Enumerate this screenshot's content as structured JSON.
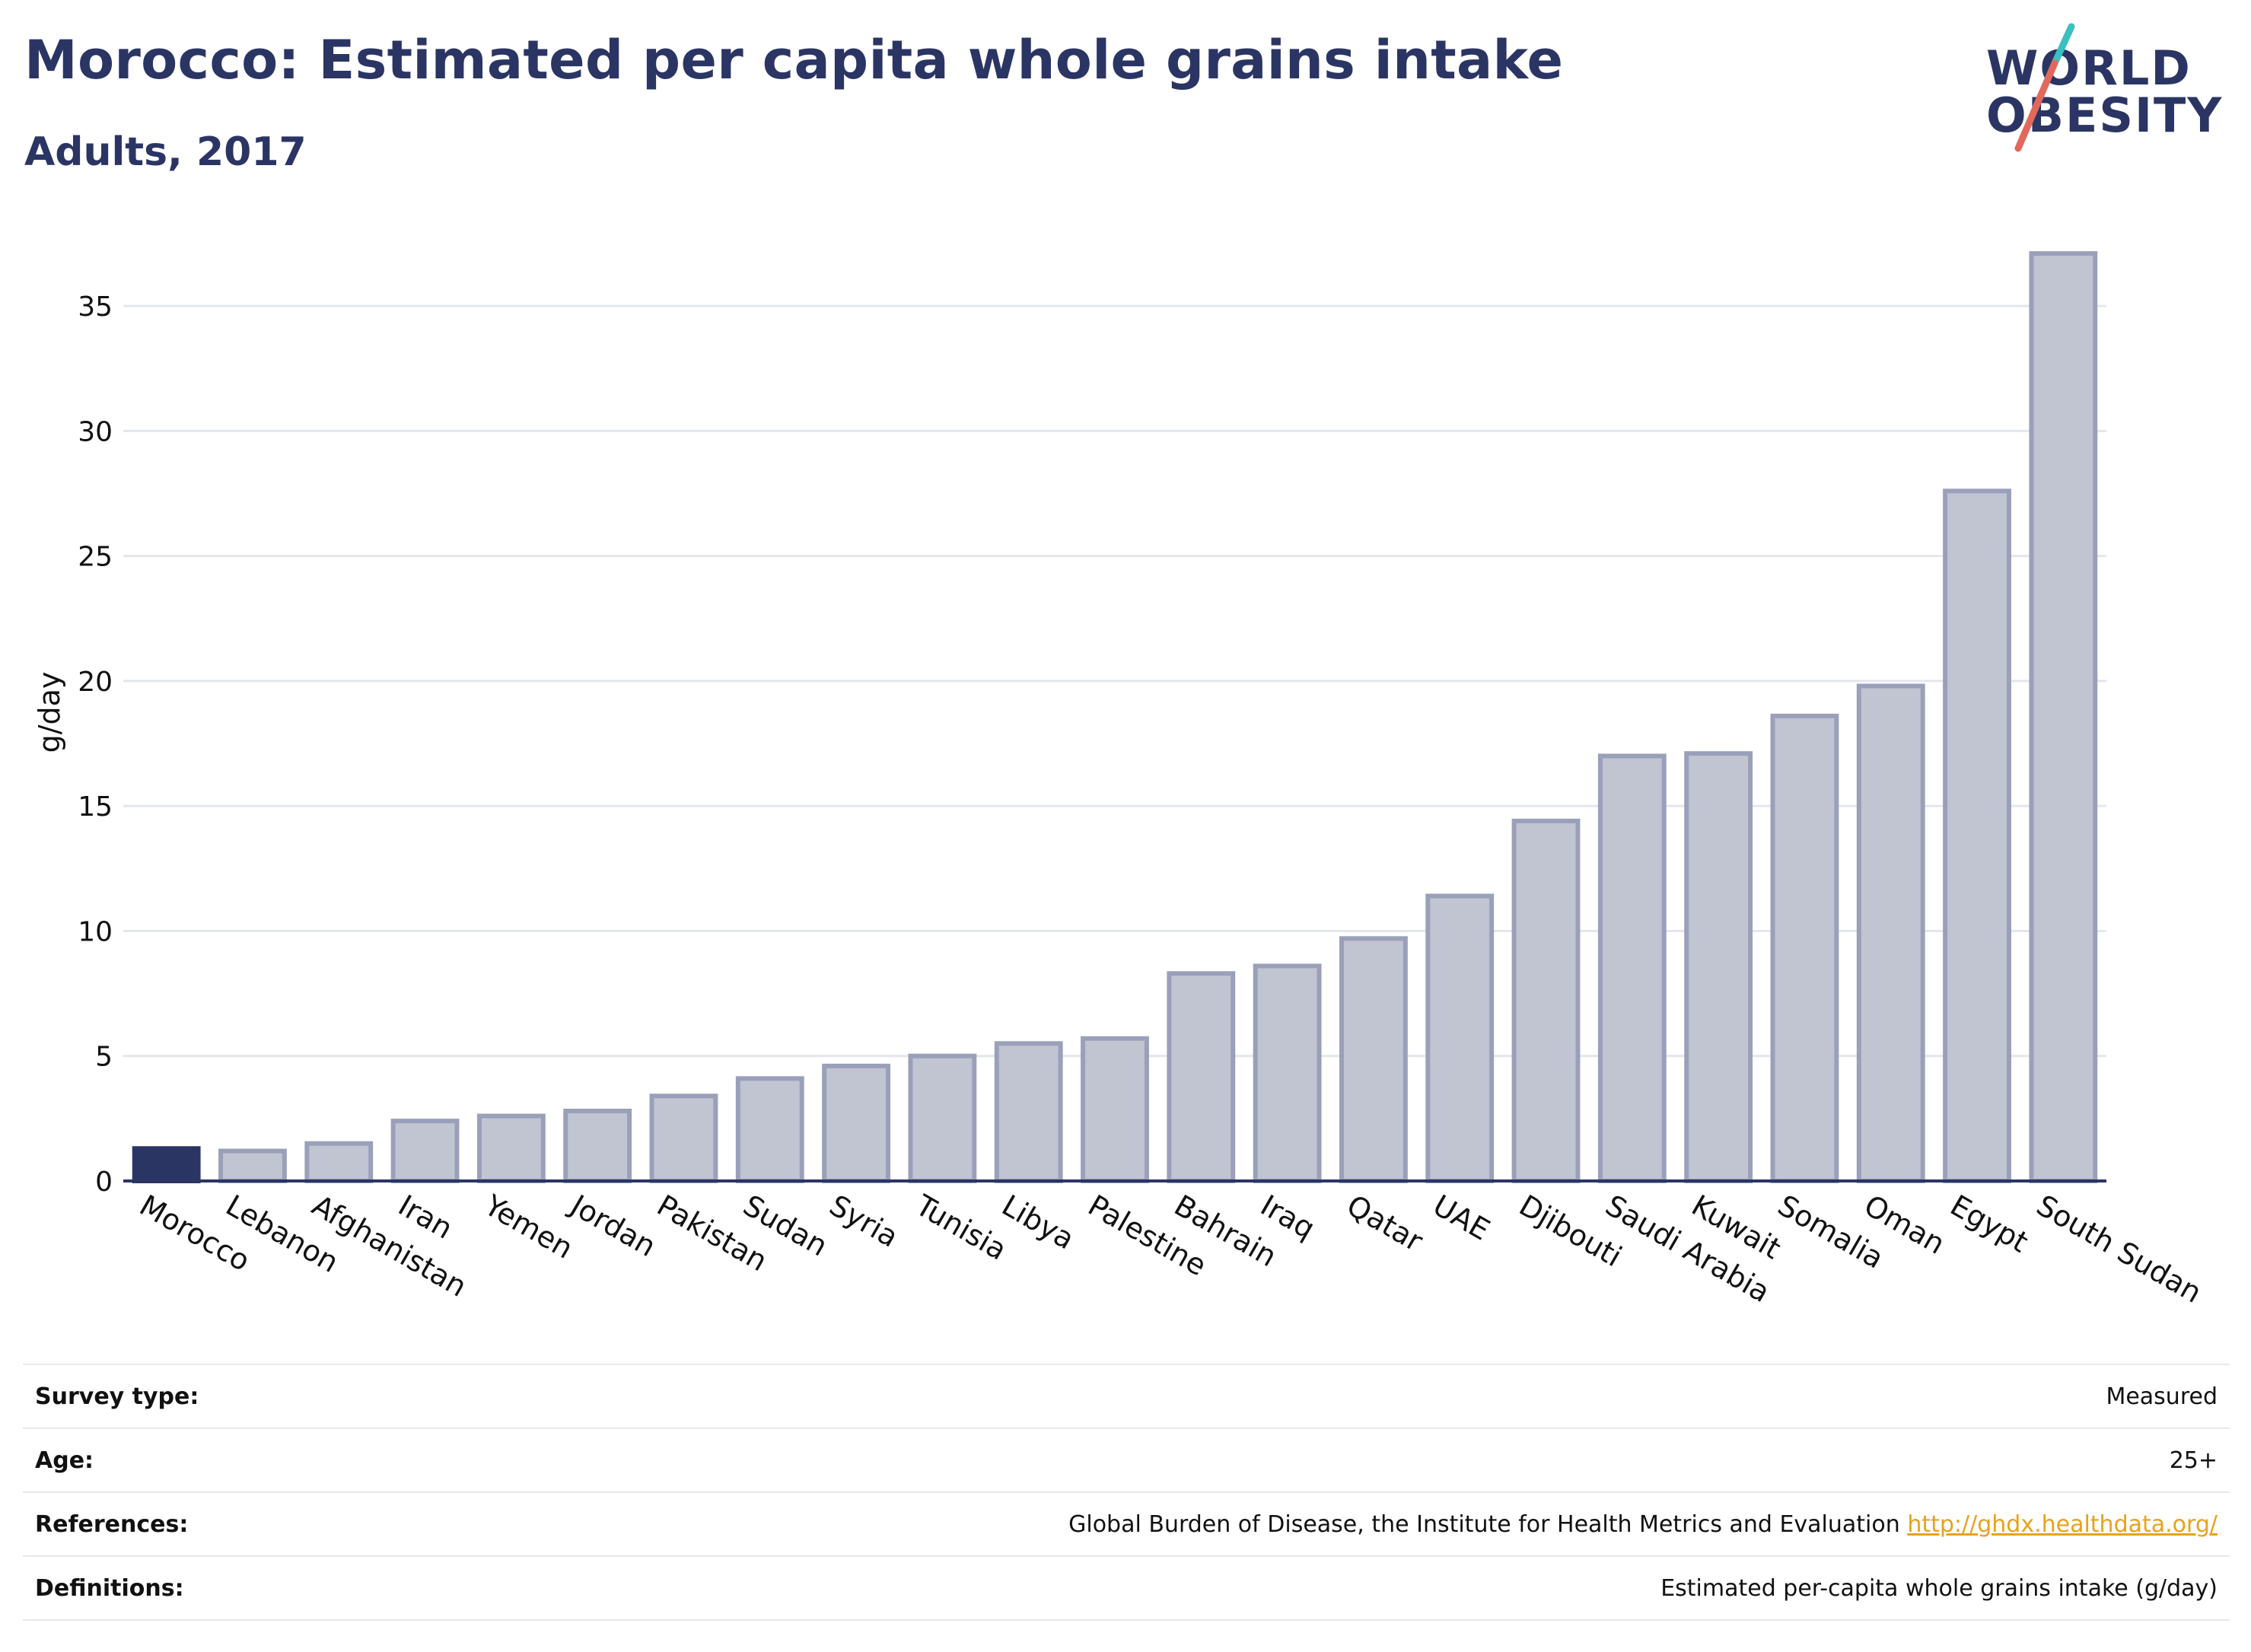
{
  "header": {
    "title": "Morocco: Estimated per capita whole grains intake",
    "subtitle": "Adults, 2017"
  },
  "logo": {
    "line1": "WORLD",
    "line2": "OBESITY",
    "accent_teal": "#3bbfc1",
    "accent_red": "#e2685c"
  },
  "colors": {
    "highlight": "#2b3564",
    "bar_fill": "#c1c4d1",
    "bar_stroke": "#9aa0b9",
    "grid": "#e4e6ee"
  },
  "chart_data": {
    "type": "bar",
    "title": "Morocco: Estimated per capita whole grains intake",
    "subtitle": "Adults, 2017",
    "ylabel": "g/day",
    "xlabel": "",
    "ylim": [
      0,
      37.5
    ],
    "yticks": [
      0,
      5,
      10,
      15,
      20,
      25,
      30,
      35
    ],
    "grid": true,
    "highlight": "Morocco",
    "categories": [
      "Morocco",
      "Lebanon",
      "Afghanistan",
      "Iran",
      "Yemen",
      "Jordan",
      "Pakistan",
      "Sudan",
      "Syria",
      "Tunisia",
      "Libya",
      "Palestine",
      "Bahrain",
      "Iraq",
      "Qatar",
      "UAE",
      "Djibouti",
      "Saudi Arabia",
      "Kuwait",
      "Somalia",
      "Oman",
      "Egypt",
      "South Sudan"
    ],
    "values": [
      1.3,
      1.2,
      1.5,
      2.4,
      2.6,
      2.8,
      3.4,
      4.1,
      4.6,
      5.0,
      5.5,
      5.7,
      8.3,
      8.6,
      9.7,
      11.4,
      14.4,
      17.0,
      17.1,
      18.6,
      19.8,
      27.6,
      37.1
    ]
  },
  "footer": {
    "rows": [
      {
        "label": "Survey type:",
        "value": "Measured"
      },
      {
        "label": "Age:",
        "value": "25+"
      },
      {
        "label": "References:",
        "value": "Global Burden of Disease, the Institute for Health Metrics and Evaluation",
        "link": "http://ghdx.healthdata.org/"
      },
      {
        "label": "Definitions:",
        "value": "Estimated per-capita whole grains intake (g/day)"
      }
    ]
  }
}
